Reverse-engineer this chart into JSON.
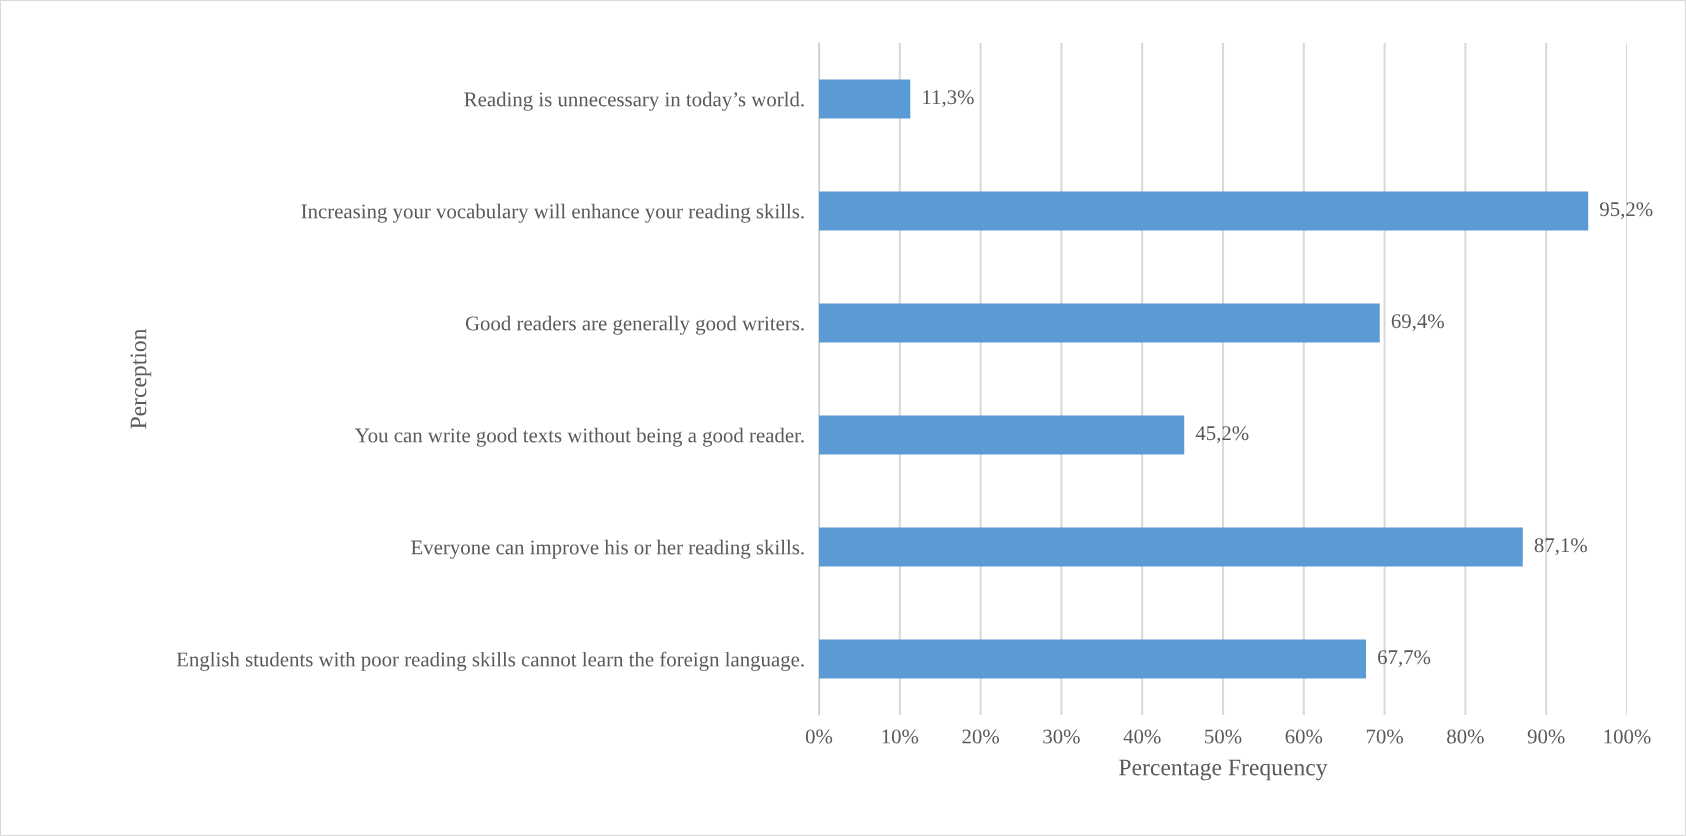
{
  "chart_data": {
    "type": "bar",
    "orientation": "horizontal",
    "xlabel": "Percentage Frequency",
    "ylabel": "Perception",
    "categories": [
      "Reading is unnecessary in today’s world.",
      "Increasing your vocabulary will enhance your reading skills.",
      "Good readers are generally good writers.",
      "You can write good texts without being a good reader.",
      "Everyone can improve his or her reading skills.",
      "English students with poor reading skills cannot learn the foreign language."
    ],
    "values": [
      11.3,
      95.2,
      69.4,
      45.2,
      87.1,
      67.7
    ],
    "value_labels": [
      "11,3%",
      "95,2%",
      "69,4%",
      "45,2%",
      "87,1%",
      "67,7%"
    ],
    "color": "#5b9bd5",
    "xlim": [
      0,
      100
    ],
    "xticks": [
      {
        "value": 0,
        "label": "0%"
      },
      {
        "value": 10,
        "label": "10%"
      },
      {
        "value": 20,
        "label": "20%"
      },
      {
        "value": 30,
        "label": "30%"
      },
      {
        "value": 40,
        "label": "40%"
      },
      {
        "value": 50,
        "label": "50%"
      },
      {
        "value": 60,
        "label": "60%"
      },
      {
        "value": 70,
        "label": "70%"
      },
      {
        "value": 80,
        "label": "80%"
      },
      {
        "value": 90,
        "label": "90%"
      },
      {
        "value": 100,
        "label": "100%"
      }
    ],
    "grid": "x",
    "legend": false
  }
}
